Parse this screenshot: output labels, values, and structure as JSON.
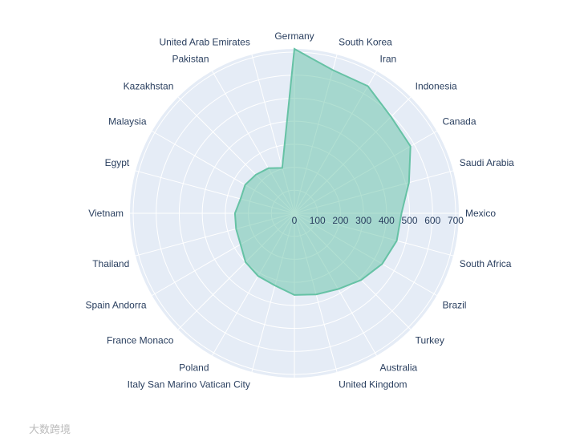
{
  "chart_data": {
    "type": "radar",
    "categories": [
      "Mexico",
      "Saudi Arabia",
      "Canada",
      "Indonesia",
      "Iran",
      "South Korea",
      "Germany",
      "United Arab Emirates",
      "Pakistan",
      "Kazakhstan",
      "Malaysia",
      "Egypt",
      "Vietnam",
      "Thailand",
      "Spain Andorra",
      "France Monaco",
      "Poland",
      "Italy San Marino Vatican City",
      null,
      "United Kingdom",
      "Australia",
      "Turkey",
      "Brazil",
      "South Africa"
    ],
    "values": [
      465,
      515,
      582,
      593,
      638,
      644,
      714,
      204,
      226,
      237,
      247,
      242,
      258,
      262,
      270,
      300,
      315,
      325,
      355,
      365,
      380,
      410,
      440,
      460
    ],
    "color": "#66c2a5",
    "rlim": [
      0,
      714
    ],
    "rticks": [
      0,
      100,
      200,
      300,
      400,
      500,
      600,
      700
    ],
    "grid": true
  },
  "watermark": "大数跨境"
}
